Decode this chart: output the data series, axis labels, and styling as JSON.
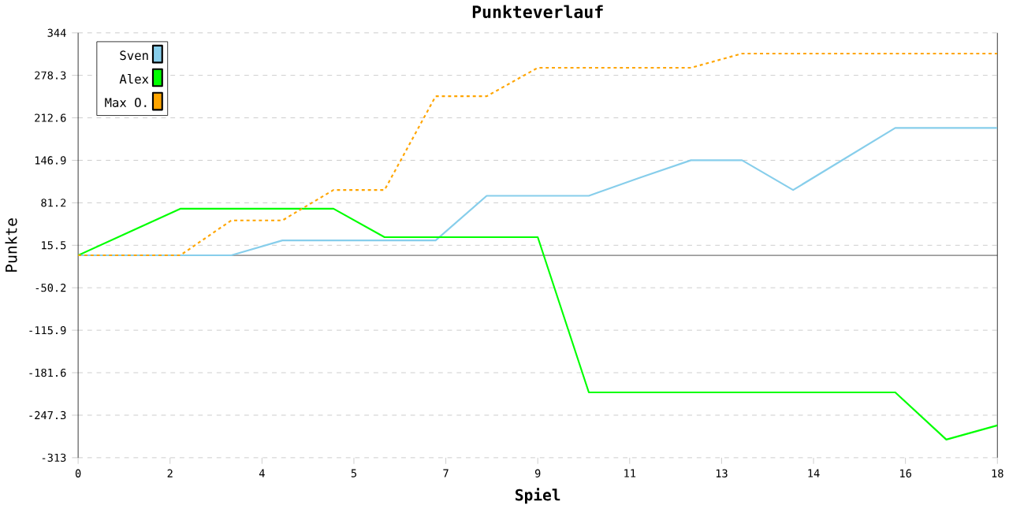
{
  "chart_data": {
    "type": "line",
    "title": "Punkteverlauf",
    "xlabel": "Spiel",
    "ylabel": "Punkte",
    "x": [
      0,
      1,
      2,
      3,
      4,
      5,
      6,
      7,
      8,
      9,
      10,
      11,
      12,
      13,
      14,
      15,
      16,
      17,
      18
    ],
    "series": [
      {
        "name": "Sven",
        "color": "#87ceeb",
        "line_style": "solid",
        "values": [
          0,
          0,
          0,
          0,
          23,
          23,
          23,
          23,
          92,
          92,
          92,
          120,
          147,
          147,
          101,
          149,
          197,
          197,
          197
        ]
      },
      {
        "name": "Alex",
        "color": "#00ff00",
        "line_style": "solid",
        "values": [
          0,
          36,
          72,
          72,
          72,
          72,
          28,
          28,
          28,
          28,
          -212,
          -212,
          -212,
          -212,
          -212,
          -212,
          -212,
          -285,
          -263
        ]
      },
      {
        "name": "Max O.",
        "color": "#ffa500",
        "line_style": "dotted",
        "values": [
          0,
          0,
          0,
          54,
          54,
          101,
          101,
          246,
          246,
          290,
          290,
          290,
          290,
          312,
          312,
          312,
          312,
          312,
          312
        ]
      }
    ],
    "xlim": [
      0,
      18
    ],
    "xticks": [
      0,
      {
        "value": 1.8,
        "label": "2"
      },
      {
        "value": 3.6,
        "label": "4"
      },
      {
        "value": 5.4,
        "label": "5"
      },
      {
        "value": 7.2,
        "label": "7"
      },
      9,
      {
        "value": 10.8,
        "label": "11"
      },
      {
        "value": 12.6,
        "label": "13"
      },
      {
        "value": 14.4,
        "label": "14"
      },
      {
        "value": 16.2,
        "label": "16"
      },
      18
    ],
    "ylim": [
      -313,
      344
    ],
    "yticks": [
      -313,
      -247.3,
      -181.6,
      -115.9,
      -50.2,
      15.5,
      81.2,
      146.9,
      212.6,
      278.3,
      344
    ],
    "ref_lines": [
      {
        "axis": "y",
        "value": 0,
        "color": "#000000"
      }
    ],
    "grid": "y",
    "legend": "top left"
  }
}
